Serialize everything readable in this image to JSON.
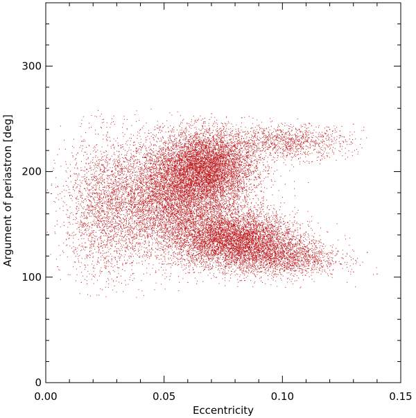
{
  "chart_data": {
    "type": "scatter",
    "title": "",
    "xlabel": "Eccentricity",
    "ylabel": "Argument of periastron [deg]",
    "xlim": [
      0.0,
      0.15
    ],
    "ylim": [
      0,
      360
    ],
    "x_ticks": [
      0.0,
      0.05,
      0.1,
      0.15
    ],
    "x_tick_labels": [
      "0.00",
      "0.05",
      "0.10",
      "0.15"
    ],
    "y_ticks": [
      0,
      100,
      200,
      300
    ],
    "y_tick_labels": [
      "0",
      "100",
      "200",
      "300"
    ],
    "grid": false,
    "marker_color": "#c0181c",
    "series": [
      {
        "points": [
          [
            0.02,
            175
          ],
          [
            0.025,
            160
          ],
          [
            0.03,
            190
          ],
          [
            0.035,
            150
          ],
          [
            0.04,
            200
          ],
          [
            0.045,
            170
          ],
          [
            0.05,
            185
          ],
          [
            0.055,
            160
          ],
          [
            0.06,
            175
          ],
          [
            0.065,
            150
          ],
          [
            0.07,
            205
          ],
          [
            0.075,
            165
          ],
          [
            0.08,
            140
          ],
          [
            0.085,
            130
          ],
          [
            0.09,
            125
          ],
          [
            0.095,
            120
          ],
          [
            0.1,
            118
          ],
          [
            0.105,
            125
          ],
          [
            0.11,
            115
          ],
          [
            0.12,
            110
          ],
          [
            0.13,
            105
          ],
          [
            0.14,
            103
          ],
          [
            0.09,
            230
          ],
          [
            0.1,
            235
          ],
          [
            0.11,
            238
          ],
          [
            0.12,
            240
          ],
          [
            0.13,
            245
          ],
          [
            0.01,
            140
          ],
          [
            0.005,
            110
          ],
          [
            0.015,
            95
          ],
          [
            0.03,
            100
          ],
          [
            0.06,
            95
          ],
          [
            0.07,
            255
          ],
          [
            0.04,
            240
          ],
          [
            0.05,
            130
          ]
        ]
      }
    ],
    "cluster_model": {
      "blobs": [
        {
          "cx": 0.055,
          "cy": 175,
          "sx": 0.014,
          "sy": 26,
          "n": 26000
        },
        {
          "cx": 0.068,
          "cy": 205,
          "sx": 0.01,
          "sy": 17,
          "n": 6000
        },
        {
          "cx": 0.08,
          "cy": 135,
          "sx": 0.013,
          "sy": 13,
          "n": 6500
        },
        {
          "cx": 0.1,
          "cy": 118,
          "sx": 0.012,
          "sy": 9,
          "n": 1600
        },
        {
          "cx": 0.102,
          "cy": 228,
          "sx": 0.013,
          "sy": 8,
          "n": 1100
        },
        {
          "cx": 0.025,
          "cy": 165,
          "sx": 0.009,
          "sy": 34,
          "n": 2000
        }
      ]
    }
  }
}
